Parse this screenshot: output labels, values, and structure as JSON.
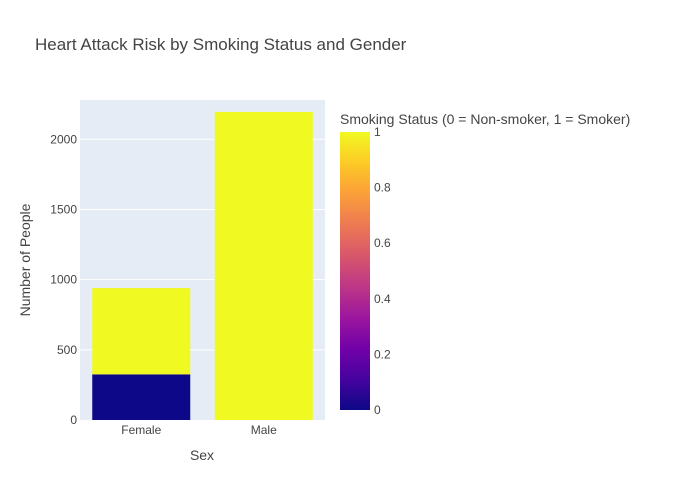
{
  "chart_data": {
    "type": "bar",
    "title": "Heart Attack Risk by Smoking Status and Gender",
    "xlabel": "Sex",
    "ylabel": "Number of People",
    "categories": [
      "Female",
      "Male"
    ],
    "stacked": true,
    "series": [
      {
        "smoking_status": 0,
        "values": [
          325,
          0
        ],
        "color": "#0d0887"
      },
      {
        "smoking_status": 1,
        "values": [
          615,
          2195
        ],
        "color": "#f0f921"
      }
    ],
    "ylim": [
      0,
      2280
    ],
    "yticks": [
      0,
      500,
      1000,
      1500,
      2000
    ],
    "yticklabels": [
      "0",
      "500",
      "1000",
      "1500",
      "2000"
    ],
    "grid": true,
    "plot_background": "#e5ecf6",
    "colorbar": {
      "title": "Smoking Status (0 = Non-smoker, 1 = Smoker)",
      "range": [
        0,
        1
      ],
      "ticks": [
        0,
        0.2,
        0.4,
        0.6,
        0.8,
        1
      ],
      "ticklabels": [
        "0",
        "0.2",
        "0.4",
        "0.6",
        "0.8",
        "1"
      ],
      "colorscale": [
        "#0d0887",
        "#46039f",
        "#7201a8",
        "#9c179e",
        "#bd3786",
        "#d8576b",
        "#ed7953",
        "#fb9f3a",
        "#fdca26",
        "#f0f921"
      ]
    }
  }
}
